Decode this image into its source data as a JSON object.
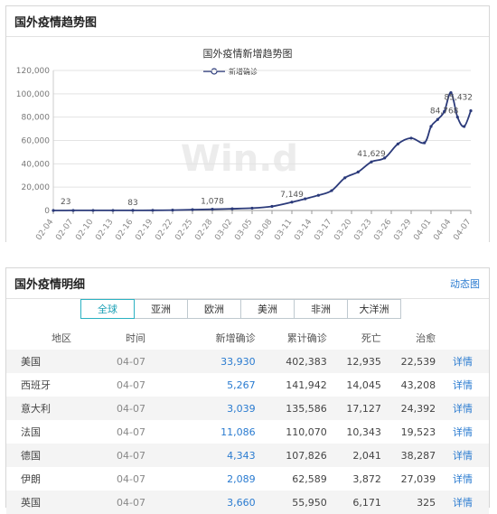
{
  "trend_panel": {
    "title": "国外疫情趋势图"
  },
  "chart_data": {
    "type": "line",
    "title": "国外疫情新增趋势图",
    "legend": "新增确诊",
    "watermark": "Win.d",
    "ylim": [
      0,
      120000
    ],
    "yticks": [
      "0",
      "20,000",
      "40,000",
      "60,000",
      "80,000",
      "100,000",
      "120,000"
    ],
    "xticks": [
      "02-04",
      "02-07",
      "02-10",
      "02-13",
      "02-16",
      "02-19",
      "02-22",
      "02-25",
      "02-28",
      "03-02",
      "03-05",
      "03-08",
      "03-11",
      "03-14",
      "03-17",
      "03-20",
      "03-23",
      "03-26",
      "03-29",
      "04-01",
      "04-04",
      "04-07"
    ],
    "x": [
      "02-04",
      "02-07",
      "02-10",
      "02-13",
      "02-16",
      "02-19",
      "02-22",
      "02-25",
      "02-28",
      "03-02",
      "03-05",
      "03-08",
      "03-11",
      "03-13",
      "03-15",
      "03-17",
      "03-19",
      "03-21",
      "03-23",
      "03-25",
      "03-27",
      "03-29",
      "03-31",
      "04-01",
      "04-02",
      "04-03",
      "04-04",
      "04-05",
      "04-06",
      "04-07"
    ],
    "values": [
      23,
      40,
      50,
      60,
      83,
      150,
      300,
      700,
      1078,
      1500,
      2000,
      3500,
      7149,
      10000,
      13000,
      17000,
      28000,
      33000,
      41629,
      45000,
      57000,
      62000,
      58000,
      72000,
      78000,
      84768,
      101000,
      80000,
      72000,
      85432
    ],
    "data_labels": [
      {
        "x": "02-04",
        "text": "23"
      },
      {
        "x": "02-16",
        "text": "83"
      },
      {
        "x": "02-28",
        "text": "1,078"
      },
      {
        "x": "03-11",
        "text": "7,149"
      },
      {
        "x": "03-23",
        "text": "41,629"
      },
      {
        "x": "04-03",
        "text": "84,768"
      },
      {
        "x": "04-07",
        "text": "85,432"
      }
    ],
    "line_color": "#2b3a7a",
    "grid": true
  },
  "detail_panel": {
    "title": "国外疫情明细",
    "link": "动态图",
    "tabs": [
      "全球",
      "亚洲",
      "欧洲",
      "美洲",
      "非洲",
      "大洋洲"
    ],
    "active_tab": "全球",
    "columns": [
      "地区",
      "时间",
      "新增确诊",
      "累计确诊",
      "死亡",
      "治愈",
      ""
    ],
    "rows": [
      [
        "美国",
        "04-07",
        "33,930",
        "402,383",
        "12,935",
        "22,539",
        "详情"
      ],
      [
        "西班牙",
        "04-07",
        "5,267",
        "141,942",
        "14,045",
        "43,208",
        "详情"
      ],
      [
        "意大利",
        "04-07",
        "3,039",
        "135,586",
        "17,127",
        "24,392",
        "详情"
      ],
      [
        "法国",
        "04-07",
        "11,086",
        "110,070",
        "10,343",
        "19,523",
        "详情"
      ],
      [
        "德国",
        "04-07",
        "4,343",
        "107,826",
        "2,041",
        "38,287",
        "详情"
      ],
      [
        "伊朗",
        "04-07",
        "2,089",
        "62,589",
        "3,872",
        "27,039",
        "详情"
      ],
      [
        "英国",
        "04-07",
        "3,660",
        "55,950",
        "6,171",
        "325",
        "详情"
      ]
    ]
  }
}
